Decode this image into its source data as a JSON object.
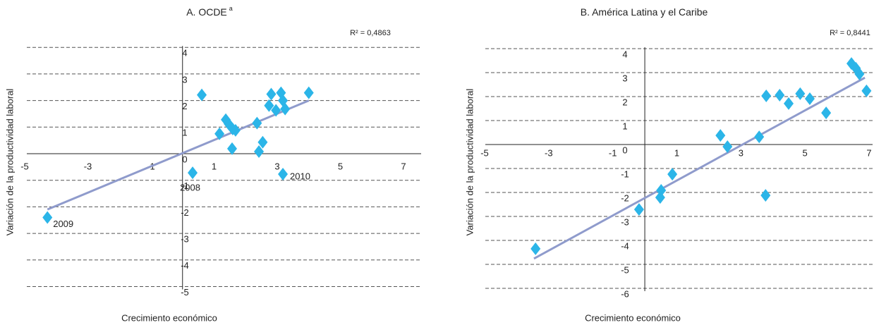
{
  "chart_data": [
    {
      "type": "scatter",
      "title": "A. OCDE",
      "title_superscript": "a",
      "r2": "R² = 0,4863",
      "x_label": "Crecimiento económico",
      "y_label": "Variación de la productividad laboral",
      "xlim": [
        -5,
        7
      ],
      "ylim": [
        -5,
        4
      ],
      "xticks": [
        -5,
        -3,
        -1,
        1,
        3,
        5,
        7
      ],
      "yticks": [
        4,
        3,
        2,
        1,
        0,
        -1,
        -2,
        -3,
        -4,
        -5
      ],
      "color": "#2bb5e8",
      "trend_color": "#8f9bcc",
      "grid": true,
      "x": [
        -4.28,
        0.32,
        0.61,
        1.17,
        1.37,
        1.46,
        1.59,
        1.57,
        1.68,
        2.36,
        2.42,
        2.54,
        2.74,
        2.81,
        2.96,
        3.12,
        3.18,
        3.25,
        3.18,
        4.0
      ],
      "values": [
        -2.4,
        -0.72,
        2.21,
        0.75,
        1.28,
        1.12,
        0.93,
        0.19,
        0.88,
        1.15,
        0.08,
        0.43,
        1.81,
        2.24,
        1.63,
        2.29,
        2.0,
        1.68,
        -0.77,
        2.29
      ],
      "trendline": {
        "x": [
          -4.28,
          4.0
        ],
        "values": [
          -2.1,
          2.0
        ]
      },
      "annotations": [
        "2009",
        "2008",
        "2010"
      ]
    },
    {
      "type": "scatter",
      "title": "B. América Latina y el Caribe",
      "r2": "R² = 0,8441",
      "x_label": "Crecimiento económico",
      "y_label": "Variación de la productividad laboral",
      "xlim": [
        -5,
        7
      ],
      "ylim": [
        -6,
        4
      ],
      "xticks": [
        -5,
        -3,
        -1,
        1,
        3,
        5,
        7
      ],
      "yticks": [
        4,
        3,
        2,
        1,
        0,
        -1,
        -2,
        -3,
        -4,
        -5,
        -6
      ],
      "color": "#2bb5e8",
      "trend_color": "#8f9bcc",
      "grid": true,
      "x": [
        -3.41,
        -0.18,
        0.48,
        0.51,
        0.86,
        2.36,
        2.58,
        3.57,
        3.77,
        3.79,
        4.21,
        4.49,
        4.85,
        5.15,
        5.66,
        6.45,
        6.59,
        6.7,
        6.92
      ],
      "values": [
        -4.35,
        -2.71,
        -2.21,
        -1.91,
        -1.24,
        0.38,
        -0.09,
        0.32,
        -2.12,
        2.03,
        2.06,
        1.71,
        2.12,
        1.91,
        1.32,
        3.38,
        3.18,
        2.94,
        2.24
      ],
      "trendline": {
        "x": [
          -3.46,
          6.87
        ],
        "values": [
          -4.76,
          2.79
        ]
      }
    }
  ]
}
